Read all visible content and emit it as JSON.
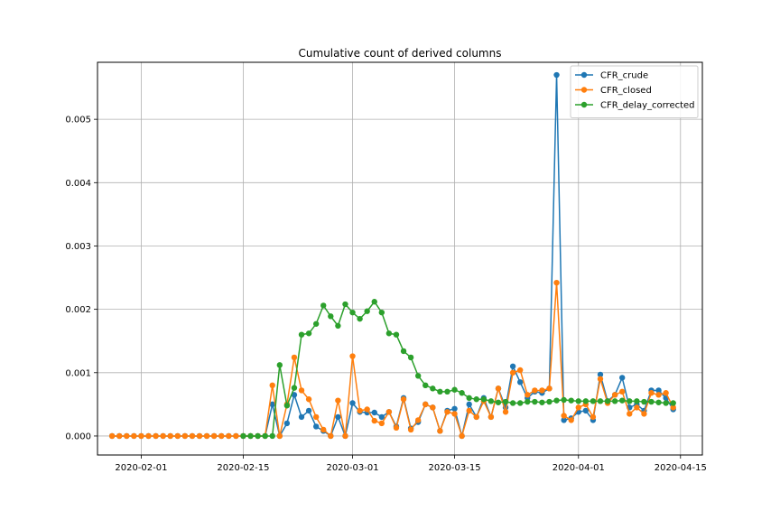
{
  "chart_data": {
    "type": "line",
    "title": "Cumulative count of derived columns",
    "xlabel": "",
    "ylabel": "",
    "x_start": "2020-01-28",
    "x_end": "2020-04-15",
    "xlim": [
      "2020-01-26",
      "2020-04-18"
    ],
    "ylim": [
      -0.0003,
      0.0059
    ],
    "x_ticks": [
      "2020-02-01",
      "2020-02-15",
      "2020-03-01",
      "2020-03-15",
      "2020-04-01",
      "2020-04-15"
    ],
    "y_ticks": [
      "0.000",
      "0.001",
      "0.002",
      "0.003",
      "0.004",
      "0.005"
    ],
    "grid": true,
    "legend_position": "top-right",
    "series": [
      {
        "name": "CFR_crude",
        "color": "#1f77b4",
        "values": [
          0,
          0,
          0,
          0,
          0,
          0,
          0,
          0,
          0,
          0,
          0,
          0,
          0,
          0,
          0,
          0,
          0,
          0,
          0,
          0,
          0,
          0,
          0.0005,
          0,
          0.0002,
          0.00065,
          0.0003,
          0.0004,
          0.00015,
          8e-05,
          0,
          0.0003,
          0,
          0.00052,
          0.00038,
          0.00037,
          0.00037,
          0.0003,
          0.00038,
          0.00015,
          0.0006,
          0.00012,
          0.00022,
          0.0005,
          0.00045,
          8e-05,
          0.0004,
          0.00043,
          0,
          0.0005,
          0.0003,
          0.0006,
          0.0003,
          0.00075,
          0.00045,
          0.0011,
          0.00085,
          0.0006,
          0.0007,
          0.00068,
          0.00075,
          0.0057,
          0.00025,
          0.00028,
          0.00038,
          0.0004,
          0.00025,
          0.00097,
          0.00055,
          0.00065,
          0.00092,
          0.00045,
          0.0005,
          0.0004,
          0.00072,
          0.00072,
          0.0006,
          0.00042
        ]
      },
      {
        "name": "CFR_closed",
        "color": "#ff7f0e",
        "values": [
          0,
          0,
          0,
          0,
          0,
          0,
          0,
          0,
          0,
          0,
          0,
          0,
          0,
          0,
          0,
          0,
          0,
          0,
          0,
          0,
          0,
          0,
          0.0008,
          0,
          0.0005,
          0.00124,
          0.00072,
          0.00058,
          0.0003,
          0.0001,
          0,
          0.00056,
          0,
          0.00126,
          0.0004,
          0.00042,
          0.00024,
          0.0002,
          0.00038,
          0.00013,
          0.00058,
          0.0001,
          0.00025,
          0.0005,
          0.00045,
          8e-05,
          0.00038,
          0.00035,
          0,
          0.0004,
          0.0003,
          0.00055,
          0.0003,
          0.00075,
          0.00038,
          0.001,
          0.00104,
          0.00065,
          0.00072,
          0.00072,
          0.00075,
          0.00242,
          0.00032,
          0.00025,
          0.00045,
          0.0005,
          0.0003,
          0.0009,
          0.00052,
          0.00065,
          0.0007,
          0.00035,
          0.00045,
          0.00035,
          0.00068,
          0.00065,
          0.00068,
          0.00045
        ]
      },
      {
        "name": "CFR_delay_corrected",
        "color": "#2ca02c",
        "values": [
          null,
          null,
          null,
          null,
          null,
          null,
          null,
          null,
          null,
          null,
          null,
          null,
          null,
          null,
          null,
          null,
          null,
          null,
          0,
          0,
          0,
          0,
          0,
          0.00112,
          0.00048,
          0.00076,
          0.0016,
          0.00162,
          0.00177,
          0.00206,
          0.00189,
          0.00174,
          0.00208,
          0.00195,
          0.00185,
          0.00197,
          0.00212,
          0.00195,
          0.00162,
          0.0016,
          0.00134,
          0.00124,
          0.00095,
          0.0008,
          0.00075,
          0.0007,
          0.0007,
          0.00073,
          0.00068,
          0.0006,
          0.00058,
          0.00058,
          0.00055,
          0.00053,
          0.00054,
          0.00052,
          0.00052,
          0.00054,
          0.00054,
          0.00053,
          0.00054,
          0.00056,
          0.00057,
          0.00056,
          0.00055,
          0.00055,
          0.00055,
          0.00055,
          0.00055,
          0.00055,
          0.00056,
          0.00055,
          0.00055,
          0.00054,
          0.00054,
          0.00053,
          0.00052,
          0.00052
        ]
      }
    ]
  }
}
